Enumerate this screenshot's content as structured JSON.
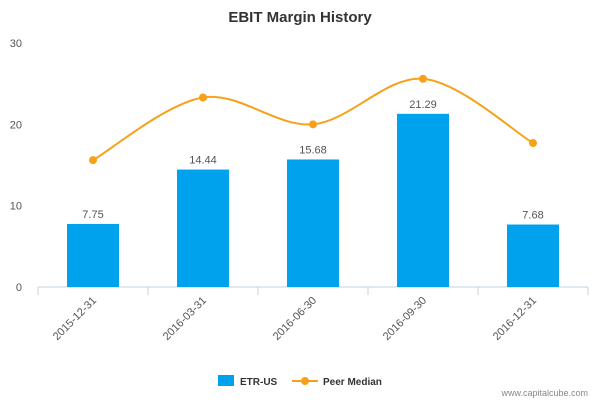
{
  "chart_data": {
    "type": "bar",
    "title": "EBIT Margin History",
    "categories": [
      "2015-12-31",
      "2016-03-31",
      "2016-06-30",
      "2016-09-30",
      "2016-12-31"
    ],
    "series": [
      {
        "name": "ETR-US",
        "type": "bar",
        "color": "#00a2ed",
        "values": [
          7.75,
          14.44,
          15.68,
          21.29,
          7.68
        ],
        "data_labels": [
          "7.75",
          "14.44",
          "15.68",
          "21.29",
          "7.68"
        ]
      },
      {
        "name": "Peer Median",
        "type": "line",
        "color": "#f7a11b",
        "values": [
          15.6,
          23.3,
          20.0,
          25.6,
          17.7
        ]
      }
    ],
    "ylim": [
      0,
      30
    ],
    "yticks": [
      "0",
      "10",
      "20",
      "30"
    ],
    "grid": false,
    "legend_position": "bottom-center"
  },
  "credit": "www.capitalcube.com"
}
